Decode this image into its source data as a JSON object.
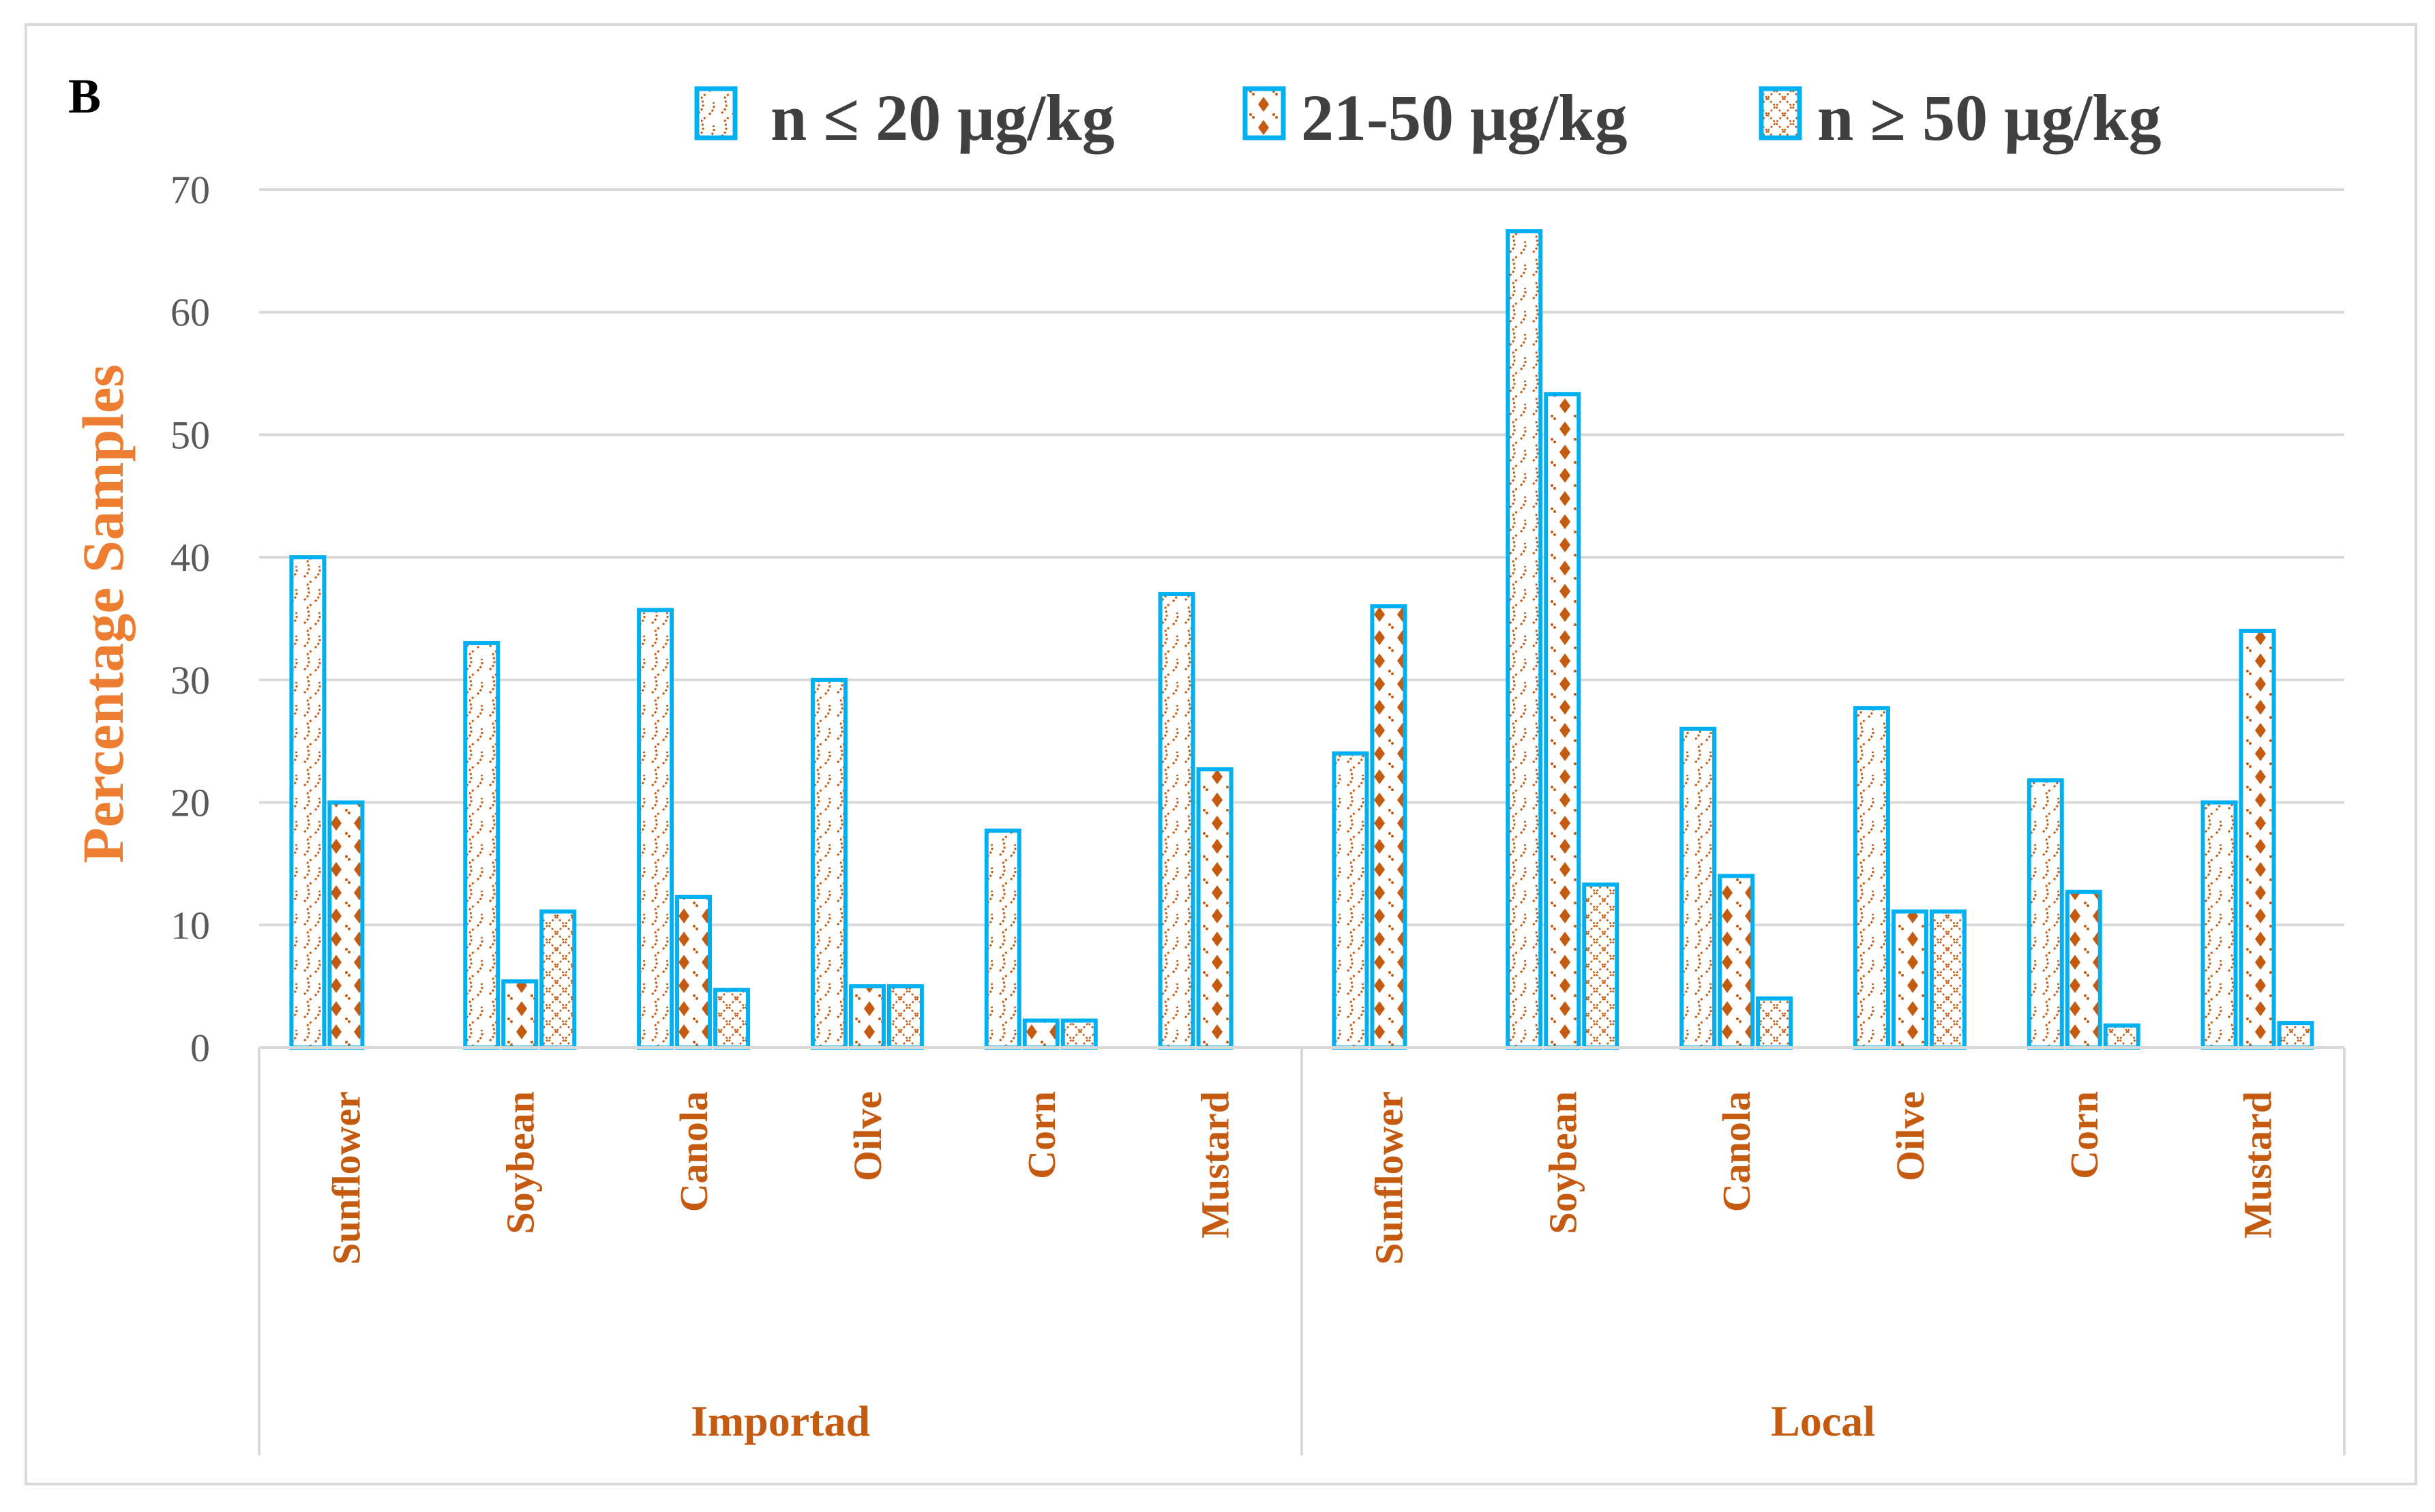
{
  "panel_label": "B",
  "colors": {
    "border": "#00B0F0",
    "pattern": "#C55A11",
    "ylabel": "#ED7D31",
    "grid": "#D9D9D9",
    "axis_text": "#595959"
  },
  "chart_data": {
    "type": "bar",
    "ylabel": "Percentage Samples",
    "xlabel": "",
    "ylim": [
      0,
      70
    ],
    "yticks": [
      "0",
      "10",
      "20",
      "30",
      "40",
      "50",
      "60",
      "70"
    ],
    "grid": true,
    "legend_position": "top",
    "groups": [
      {
        "name": "Importad",
        "categories": [
          "Sunflower",
          "Soybean",
          "Canola",
          "Oilve",
          "Corn",
          "Mustard"
        ]
      },
      {
        "name": "Local",
        "categories": [
          "Sunflower",
          "Soybean",
          "Canola",
          "Oilve",
          "Corn",
          "Mustard"
        ]
      }
    ],
    "series": [
      {
        "name": "n ≤ 20 μg/kg",
        "values": [
          40,
          33,
          35.7,
          30,
          17.7,
          37,
          24,
          66.6,
          26,
          27.7,
          21.8,
          20
        ]
      },
      {
        "name": "21-50 μg/kg",
        "values": [
          20,
          5.4,
          12.3,
          5,
          2.2,
          22.7,
          36,
          53.3,
          14,
          11.1,
          12.7,
          34
        ]
      },
      {
        "name": "n ≥ 50 μg/kg",
        "values": [
          0,
          11.1,
          4.7,
          5,
          2.2,
          0,
          0,
          13.3,
          4,
          11.1,
          1.8,
          2
        ]
      }
    ]
  }
}
